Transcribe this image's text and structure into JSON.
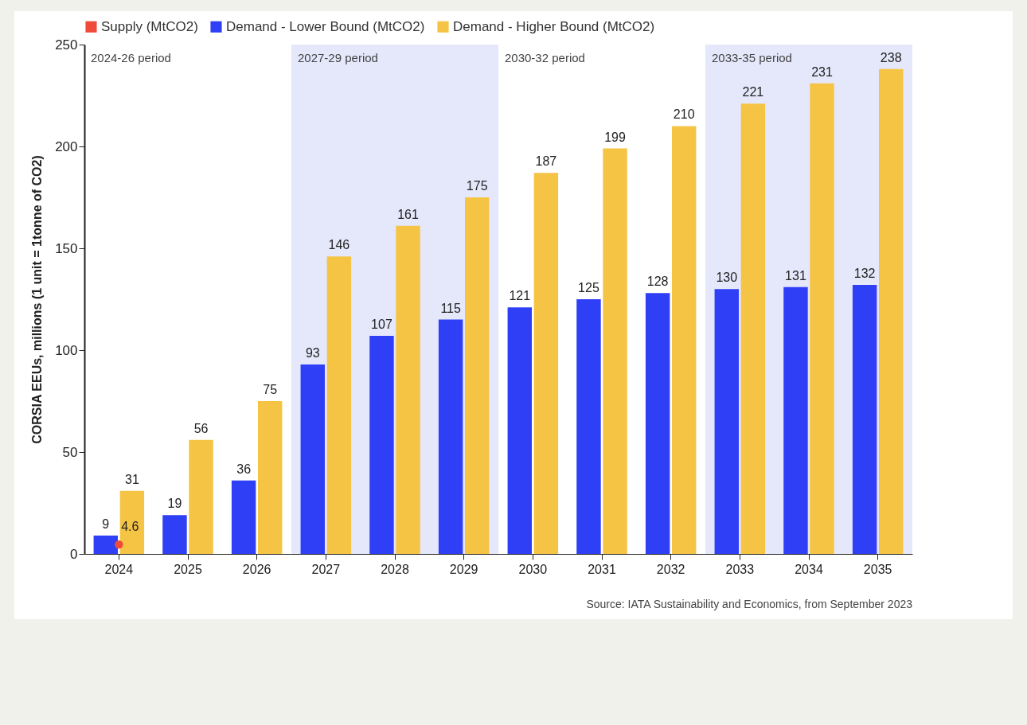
{
  "chart_data": {
    "type": "bar",
    "ylabel": "CORSIA EEUs, millions (1 unit = 1tonne of CO2)",
    "categories": [
      "2024",
      "2025",
      "2026",
      "2027",
      "2028",
      "2029",
      "2030",
      "2031",
      "2032",
      "2033",
      "2034",
      "2035"
    ],
    "series": [
      {
        "name": "Supply (MtCO2)",
        "type": "scatter",
        "color": "#f04a3a",
        "values": [
          4.6,
          null,
          null,
          null,
          null,
          null,
          null,
          null,
          null,
          null,
          null,
          null
        ]
      },
      {
        "name": "Demand - Lower Bound (MtCO2)",
        "color": "#2e3ff5",
        "values": [
          9,
          19,
          36,
          93,
          107,
          115,
          121,
          125,
          128,
          130,
          131,
          132
        ]
      },
      {
        "name": "Demand - Higher Bound (MtCO2)",
        "color": "#f5c445",
        "values": [
          31,
          56,
          75,
          146,
          161,
          175,
          187,
          199,
          210,
          221,
          231,
          238
        ]
      }
    ],
    "ylim": [
      0,
      250
    ],
    "yticks": [
      0,
      50,
      100,
      150,
      200,
      250
    ],
    "data_labels": true,
    "grid": false,
    "legend": "top left",
    "marker": "circle",
    "bands": [
      {
        "axis": "x",
        "from": "2027",
        "to": "2029",
        "label": "2027-29 period",
        "color": "#e5e7fb"
      },
      {
        "axis": "x",
        "from": "2033",
        "to": "2035",
        "label": "2033-35 period",
        "color": "#e5e7fb"
      }
    ],
    "annotations": [
      "2024-26 period",
      "2030-32 period",
      "Source: IATA Sustainability and Economics, from September 2023"
    ]
  }
}
